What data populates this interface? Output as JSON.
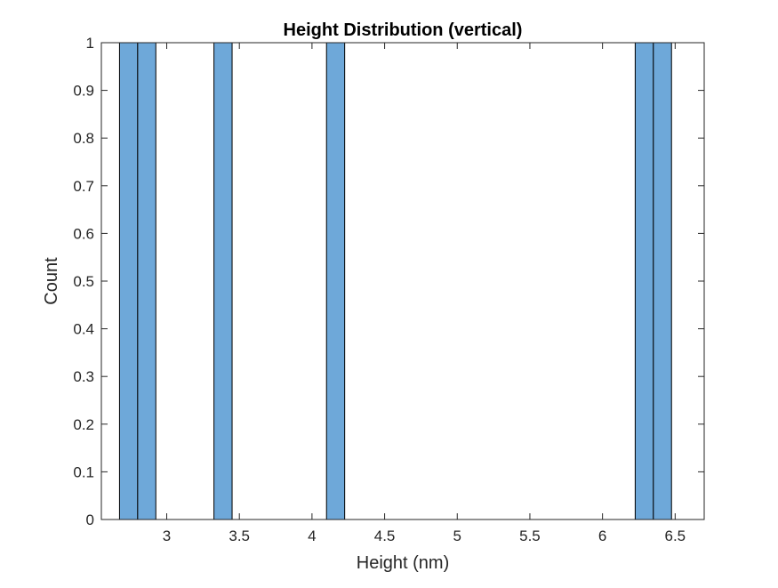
{
  "chart_data": {
    "type": "bar",
    "title": "Height Distribution (vertical)",
    "xlabel": "Height (nm)",
    "ylabel": "Count",
    "xlim": [
      2.55,
      6.7
    ],
    "ylim": [
      0,
      1
    ],
    "xticks": [
      3,
      3.5,
      4,
      4.5,
      5,
      5.5,
      6,
      6.5
    ],
    "xtick_labels": [
      "3",
      "3.5",
      "4",
      "4.5",
      "5",
      "5.5",
      "6",
      "6.5"
    ],
    "yticks": [
      0,
      0.1,
      0.2,
      0.3,
      0.4,
      0.5,
      0.6,
      0.7,
      0.8,
      0.9,
      1
    ],
    "ytick_labels": [
      "0",
      "0.1",
      "0.2",
      "0.3",
      "0.4",
      "0.5",
      "0.6",
      "0.7",
      "0.8",
      "0.9",
      "1"
    ],
    "bin_width": 0.125,
    "bins": [
      {
        "start": 2.675,
        "end": 2.8,
        "count": 1
      },
      {
        "start": 2.8,
        "end": 2.925,
        "count": 1
      },
      {
        "start": 3.325,
        "end": 3.45,
        "count": 1
      },
      {
        "start": 4.1,
        "end": 4.225,
        "count": 1
      },
      {
        "start": 6.225,
        "end": 6.35,
        "count": 1
      },
      {
        "start": 6.35,
        "end": 6.475,
        "count": 1
      }
    ],
    "grid": false,
    "colors": {
      "bar_fill": "#6EA8D9",
      "bar_edge": "#000000",
      "axis": "#262626"
    }
  }
}
